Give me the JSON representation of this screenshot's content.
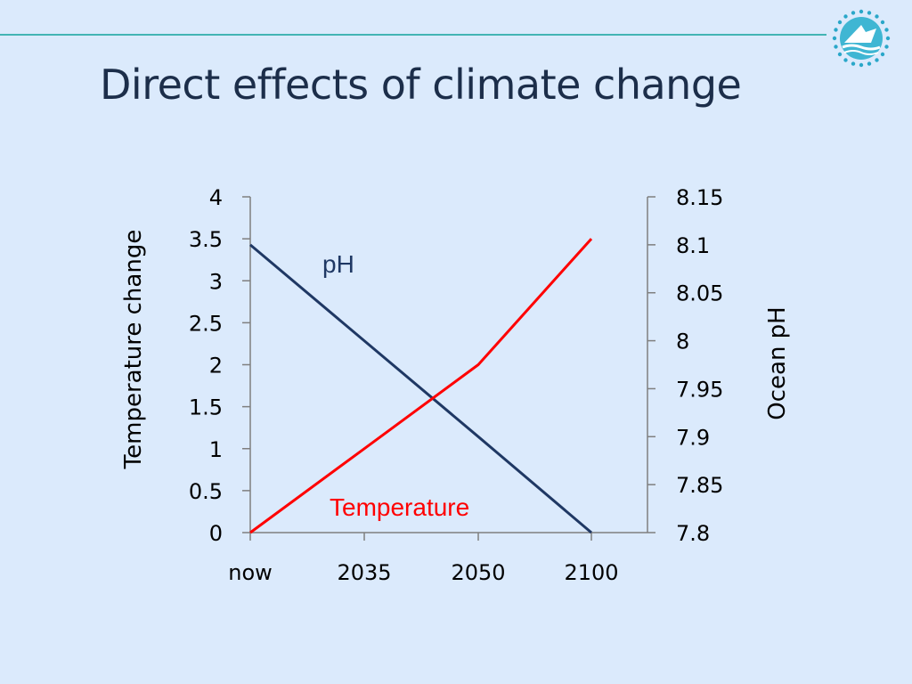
{
  "slide": {
    "title": "Direct effects of climate change",
    "colors": {
      "background": "#dbeafc",
      "rule": "#43b4b4",
      "title": "#1c2e4a"
    },
    "logo_icon": "ocean-logo-icon"
  },
  "chart_data": {
    "type": "line",
    "categories": [
      "now",
      "2035",
      "2050",
      "2100"
    ],
    "y_left": {
      "label": "Temperature change",
      "range": [
        0,
        4
      ],
      "ticks": [
        "0",
        "0.5",
        "1",
        "1.5",
        "2",
        "2.5",
        "3",
        "3.5",
        "4"
      ]
    },
    "y_right": {
      "label": "Ocean pH",
      "range": [
        7.8,
        8.15
      ],
      "ticks": [
        "7.8",
        "7.85",
        "7.9",
        "7.95",
        "8",
        "8.05",
        "8.1",
        "8.15"
      ]
    },
    "series": [
      {
        "name": "pH",
        "axis": "right",
        "color": "#1f3864",
        "values": [
          8.1,
          8.0,
          7.9,
          7.8
        ]
      },
      {
        "name": "Temperature",
        "axis": "left",
        "color": "#ff0000",
        "values": [
          0,
          1,
          2,
          3.5
        ]
      }
    ],
    "grid": false,
    "legend": "inline"
  }
}
